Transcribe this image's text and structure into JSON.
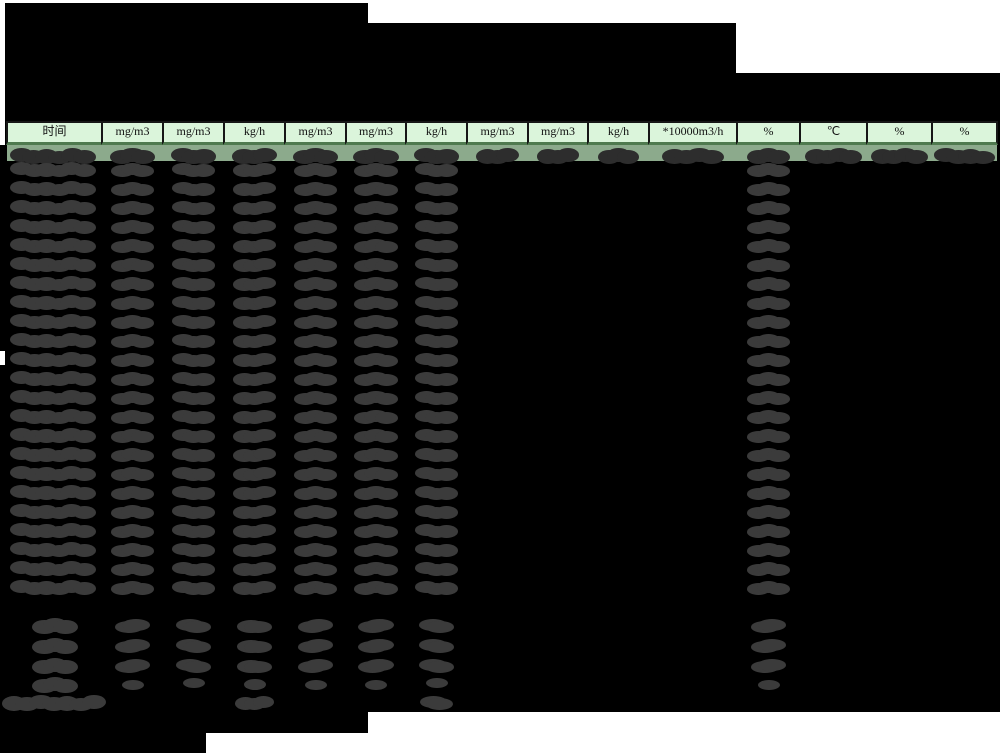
{
  "table": {
    "columns": [
      {
        "label": "时间"
      },
      {
        "label": "mg/m3"
      },
      {
        "label": "mg/m3"
      },
      {
        "label": "kg/h"
      },
      {
        "label": "mg/m3"
      },
      {
        "label": "mg/m3"
      },
      {
        "label": "kg/h"
      },
      {
        "label": "mg/m3"
      },
      {
        "label": "mg/m3"
      },
      {
        "label": "kg/h"
      },
      {
        "label": "*10000m3/h"
      },
      {
        "label": "%"
      },
      {
        "label": "℃"
      },
      {
        "label": "%"
      },
      {
        "label": "%"
      }
    ],
    "colors": {
      "page_bg": "#ffffff",
      "redaction_black": "#000000",
      "header_bg": "#dbf5db",
      "header_border": "#161616",
      "header_accent_strip": "#4f7a4f",
      "first_row_bg": "#8caa8c",
      "scribble_on_green": "#2d2d2d",
      "scribble_on_black": "#3b3b3b"
    },
    "structure": {
      "data_rows": 24,
      "summary_rows": 4,
      "total_rows": 1,
      "columns_redacted_every_row": [
        1,
        2,
        3,
        4,
        5,
        6,
        7,
        12
      ],
      "columns_redacted_first_row_only": [
        8,
        9,
        10,
        11,
        13,
        14,
        15
      ]
    }
  }
}
